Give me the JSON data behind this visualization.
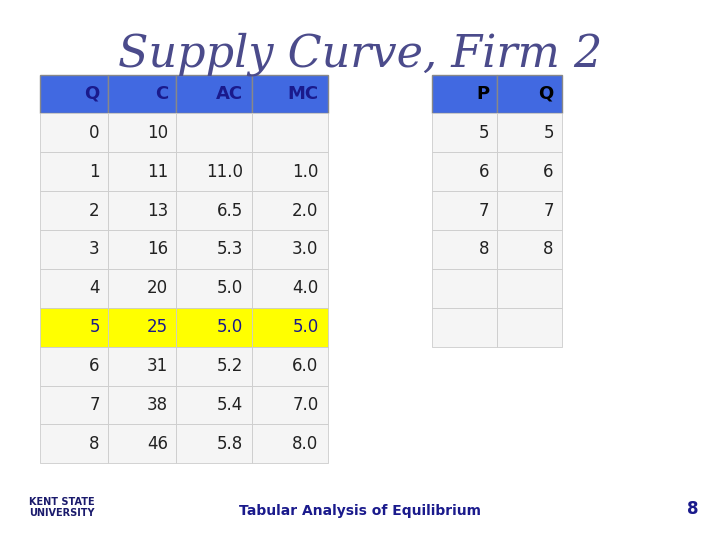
{
  "title": "Supply Curve, Firm 2",
  "title_color": "#4B4B8B",
  "title_fontsize": 32,
  "main_table": {
    "headers": [
      "Q",
      "C",
      "AC",
      "MC"
    ],
    "rows": [
      [
        "0",
        "10",
        "",
        ""
      ],
      [
        "1",
        "11",
        "11.0",
        "1.0"
      ],
      [
        "2",
        "13",
        "6.5",
        "2.0"
      ],
      [
        "3",
        "16",
        "5.3",
        "3.0"
      ],
      [
        "4",
        "20",
        "5.0",
        "4.0"
      ],
      [
        "5",
        "25",
        "5.0",
        "5.0"
      ],
      [
        "6",
        "31",
        "5.2",
        "6.0"
      ],
      [
        "7",
        "38",
        "5.4",
        "7.0"
      ],
      [
        "8",
        "46",
        "5.8",
        "8.0"
      ]
    ],
    "highlight_row": 5,
    "highlight_color": "#FFFF00",
    "header_color": "#4169E1",
    "header_text_color": "#1A1A8C",
    "cell_bg_color": "#F5F5F5",
    "border_color": "#CCCCCC",
    "col_aligns": [
      "right",
      "right",
      "right",
      "right"
    ]
  },
  "side_table": {
    "headers": [
      "P",
      "Q"
    ],
    "rows": [
      [
        "5",
        "5"
      ],
      [
        "6",
        "6"
      ],
      [
        "7",
        "7"
      ],
      [
        "8",
        "8"
      ],
      [
        "",
        ""
      ],
      [
        "",
        ""
      ]
    ],
    "header_color": "#4169E1",
    "header_text_color": "#1A1A8C",
    "cell_bg_color": "#F5F5F5",
    "border_color": "#CCCCCC"
  },
  "footer_text": "Tabular Analysis of Equilibrium",
  "footer_number": "8",
  "footer_color": "#1A1A8C",
  "bg_color": "#FFFFFF"
}
